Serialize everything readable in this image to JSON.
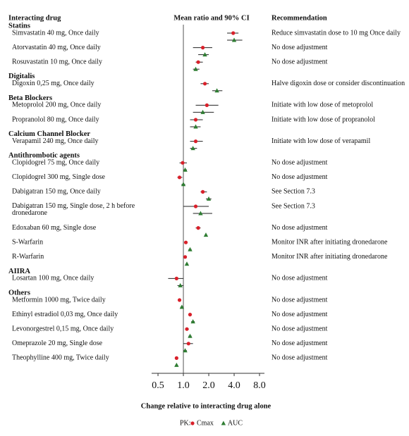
{
  "chart_data": {
    "type": "forest",
    "columns": [
      "Interacting drug",
      "Mean ratio and 90% CI",
      "Recommendation"
    ],
    "x_label": "Change relative to interacting drug alone",
    "legend_title": "PK:",
    "xscale": "log",
    "xlim": [
      0.42,
      9.15
    ],
    "xticks": [
      0.5,
      {
        "value": 1,
        "label": "1.0"
      },
      {
        "value": 2,
        "label": "2.0"
      },
      {
        "value": 4,
        "label": "4.0"
      },
      {
        "value": 8,
        "label": "8.0"
      }
    ],
    "reference": 1,
    "series": [
      {
        "name": "Cmax",
        "color": "#d9202a",
        "marker": "circle"
      },
      {
        "name": "AUC",
        "color": "#2e7d32",
        "marker": "triangle"
      }
    ],
    "groups": [
      {
        "name": "Statins",
        "rows": [
          {
            "drug": "Simvastatin 40 mg, Once daily",
            "recommendation": "Reduce simvastatin dose to 10 mg Once daily",
            "pk": [
              {
                "value": 3.9,
                "low": 3.3,
                "high": 4.5
              },
              {
                "value": 4.0,
                "low": 3.3,
                "high": 5.0
              }
            ]
          },
          {
            "drug": "Atorvastatin 40 mg, Once daily",
            "recommendation": "No dose adjustment",
            "pk": [
              {
                "value": 1.7,
                "low": 1.3,
                "high": 2.2
              },
              {
                "value": 1.8,
                "low": 1.5,
                "high": 2.0
              }
            ]
          },
          {
            "drug": "Rosuvastatin 10 mg, Once daily",
            "recommendation": "No dose adjustment",
            "pk": [
              {
                "value": 1.5,
                "low": 1.4,
                "high": 1.7
              },
              {
                "value": 1.4,
                "low": 1.3,
                "high": 1.55
              }
            ]
          }
        ]
      },
      {
        "name": "Digitalis",
        "rows": [
          {
            "drug": "Digoxin 0,25 mg, Once daily",
            "recommendation": "Halve digoxin dose or consider discontinuation",
            "pk": [
              {
                "value": 1.8,
                "low": 1.6,
                "high": 2.0
              },
              {
                "value": 2.5,
                "low": 2.2,
                "high": 2.9
              }
            ]
          }
        ]
      },
      {
        "name": "Beta Blockers",
        "rows": [
          {
            "drug": "Metoprolol 200 mg, Once daily",
            "recommendation": "Initiate with low dose of metoprolol",
            "pk": [
              {
                "value": 1.9,
                "low": 1.4,
                "high": 2.6
              },
              {
                "value": 1.7,
                "low": 1.3,
                "high": 2.3
              }
            ]
          },
          {
            "drug": "Propranolol 80 mg, Once daily",
            "recommendation": "Initiate with low dose of propranolol",
            "pk": [
              {
                "value": 1.4,
                "low": 1.2,
                "high": 1.7
              },
              {
                "value": 1.4,
                "low": 1.2,
                "high": 1.6
              }
            ]
          }
        ]
      },
      {
        "name": "Calcium Channel Blocker",
        "rows": [
          {
            "drug": "Verapamil 240 mg, Once daily",
            "recommendation": "Initiate with low dose of verapamil",
            "pk": [
              {
                "value": 1.4,
                "low": 1.2,
                "high": 1.7
              },
              {
                "value": 1.3,
                "low": 1.2,
                "high": 1.45
              }
            ]
          }
        ]
      },
      {
        "name": "Antithrombotic agents",
        "rows": [
          {
            "drug": "Clopidogrel 75 mg, Once daily",
            "recommendation": "No dose adjustment",
            "pk": [
              {
                "value": 0.98,
                "low": 0.9,
                "high": 1.1
              },
              {
                "value": 1.05,
                "low": 1.0,
                "high": 1.1
              }
            ]
          },
          {
            "drug": "Clopidogrel 300 mg, Single dose",
            "recommendation": "No dose adjustment",
            "pk": [
              {
                "value": 0.9,
                "low": 0.85,
                "high": 0.97
              },
              {
                "value": 1.0,
                "low": 0.95,
                "high": 1.05
              }
            ]
          },
          {
            "drug": "Dabigatran 150 mg, Once daily",
            "recommendation": "See Section 7.3",
            "pk": [
              {
                "value": 1.7,
                "low": 1.6,
                "high": 1.9
              },
              {
                "value": 2.0,
                "low": 1.85,
                "high": 2.15
              }
            ]
          },
          {
            "drug": "Dabigatran 150 mg, Single dose, 2 h before dronedarone",
            "recommendation": "See Section 7.3",
            "pk": [
              {
                "value": 1.4,
                "low": 1.0,
                "high": 2.0
              },
              {
                "value": 1.6,
                "low": 1.3,
                "high": 2.2
              }
            ]
          },
          {
            "drug": "Edoxaban 60 mg, Single dose",
            "recommendation": "No dose adjustment",
            "pk": [
              {
                "value": 1.5,
                "low": 1.4,
                "high": 1.6
              },
              {
                "value": 1.85,
                "low": 1.8,
                "high": 1.9
              }
            ]
          },
          {
            "drug": "S-Warfarin",
            "recommendation": "Monitor INR after initiating dronedarone",
            "pk": [
              {
                "value": 1.07,
                "low": 1.03,
                "high": 1.12
              },
              {
                "value": 1.2,
                "low": 1.15,
                "high": 1.25
              }
            ]
          },
          {
            "drug": "R-Warfarin",
            "recommendation": "Monitor INR after initiating dronedarone",
            "pk": [
              {
                "value": 1.05,
                "low": 1.02,
                "high": 1.09
              },
              {
                "value": 1.1,
                "low": 1.06,
                "high": 1.14
              }
            ]
          }
        ]
      },
      {
        "name": "AIIRA",
        "rows": [
          {
            "drug": "Losartan 100 mg, Once daily",
            "recommendation": "No dose adjustment",
            "pk": [
              {
                "value": 0.83,
                "low": 0.66,
                "high": 1.0
              },
              {
                "value": 0.92,
                "low": 0.85,
                "high": 1.0
              }
            ]
          }
        ]
      },
      {
        "name": "Others",
        "rows": [
          {
            "drug": "Metformin 1000 mg, Twice daily",
            "recommendation": "No dose adjustment",
            "pk": [
              {
                "value": 0.9,
                "low": 0.86,
                "high": 0.94
              },
              {
                "value": 0.96,
                "low": 0.92,
                "high": 1.0
              }
            ]
          },
          {
            "drug": "Ethinyl estradiol 0,03 mg, Once daily",
            "recommendation": "No dose adjustment",
            "pk": [
              {
                "value": 1.2,
                "low": 1.15,
                "high": 1.26
              },
              {
                "value": 1.3,
                "low": 1.24,
                "high": 1.36
              }
            ]
          },
          {
            "drug": "Levonorgestrel 0,15 mg, Once daily",
            "recommendation": "No dose adjustment",
            "pk": [
              {
                "value": 1.1,
                "low": 1.05,
                "high": 1.16
              },
              {
                "value": 1.2,
                "low": 1.15,
                "high": 1.25
              }
            ]
          },
          {
            "drug": "Omeprazole 20 mg, Single dose",
            "recommendation": "No dose adjustment",
            "pk": [
              {
                "value": 1.15,
                "low": 1.0,
                "high": 1.3
              },
              {
                "value": 1.05,
                "low": 1.0,
                "high": 1.1
              }
            ]
          },
          {
            "drug": "Theophylline 400 mg, Twice daily",
            "recommendation": "No dose adjustment",
            "pk": [
              {
                "value": 0.83,
                "low": 0.8,
                "high": 0.86
              },
              {
                "value": 0.83,
                "low": 0.8,
                "high": 0.86
              }
            ]
          }
        ]
      }
    ]
  }
}
